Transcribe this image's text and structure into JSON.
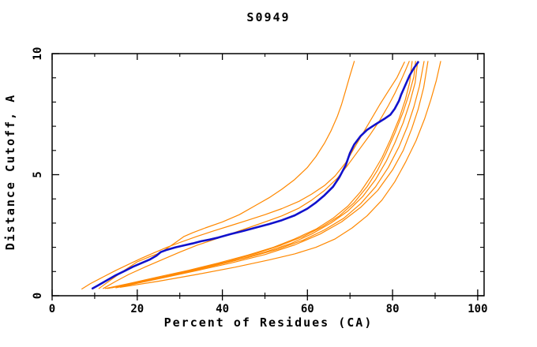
{
  "title": "S0949",
  "colors": {
    "background": "#FFFFFF",
    "axis": "#000000",
    "highlight_series": "#1111CC",
    "comparison_series": "#FF8800"
  },
  "chart_data": {
    "type": "line",
    "title": "S0949",
    "xlabel": "Percent of Residues (CA)",
    "ylabel": "Distance Cutoff, A",
    "xlim": [
      0,
      101.5
    ],
    "ylim": [
      0,
      10
    ],
    "x_major_ticks": [
      0,
      20,
      40,
      60,
      80,
      100
    ],
    "x_minor_ticks": [
      10,
      30,
      50,
      70,
      90
    ],
    "y_major_ticks": [
      0,
      5,
      10
    ],
    "y_minor_ticks": [
      1,
      2,
      3,
      4,
      6,
      7,
      8,
      9
    ],
    "grid": false,
    "legend": "none",
    "series": [
      {
        "name": "model-orange-1",
        "color": "#FF8800",
        "width": 1.2,
        "points": [
          [
            7,
            0.28
          ],
          [
            9,
            0.5
          ],
          [
            12,
            0.78
          ],
          [
            15,
            1.05
          ],
          [
            18,
            1.3
          ],
          [
            21,
            1.55
          ],
          [
            24,
            1.78
          ],
          [
            27,
            2.0
          ],
          [
            30,
            2.2
          ],
          [
            34,
            2.45
          ],
          [
            38,
            2.68
          ],
          [
            42,
            2.9
          ],
          [
            46,
            3.12
          ],
          [
            50,
            3.35
          ],
          [
            54,
            3.6
          ],
          [
            58,
            3.9
          ],
          [
            61,
            4.2
          ],
          [
            64,
            4.55
          ],
          [
            66.5,
            4.95
          ],
          [
            69,
            5.5
          ],
          [
            71,
            6.1
          ],
          [
            73,
            6.7
          ],
          [
            75,
            7.3
          ],
          [
            77,
            7.9
          ],
          [
            79,
            8.45
          ],
          [
            81,
            9.0
          ],
          [
            82.8,
            9.65
          ]
        ]
      },
      {
        "name": "model-orange-2",
        "color": "#FF8800",
        "width": 1.2,
        "points": [
          [
            11,
            0.3
          ],
          [
            14,
            0.68
          ],
          [
            17,
            1.05
          ],
          [
            20,
            1.4
          ],
          [
            23,
            1.62
          ],
          [
            25.5,
            1.78
          ],
          [
            26.5,
            1.9
          ],
          [
            29,
            2.2
          ],
          [
            31,
            2.45
          ],
          [
            33,
            2.6
          ],
          [
            36,
            2.8
          ],
          [
            40,
            3.05
          ],
          [
            44,
            3.35
          ],
          [
            48,
            3.75
          ],
          [
            51,
            4.05
          ],
          [
            54,
            4.4
          ],
          [
            57,
            4.8
          ],
          [
            60,
            5.3
          ],
          [
            62,
            5.75
          ],
          [
            64,
            6.3
          ],
          [
            65.5,
            6.8
          ],
          [
            67,
            7.4
          ],
          [
            68,
            7.9
          ],
          [
            69,
            8.5
          ],
          [
            70,
            9.1
          ],
          [
            71,
            9.68
          ]
        ]
      },
      {
        "name": "model-orange-3",
        "color": "#FF8800",
        "width": 1.2,
        "points": [
          [
            12,
            0.3
          ],
          [
            15,
            0.6
          ],
          [
            18,
            0.88
          ],
          [
            22,
            1.2
          ],
          [
            26,
            1.5
          ],
          [
            30,
            1.8
          ],
          [
            34,
            2.08
          ],
          [
            38,
            2.32
          ],
          [
            42,
            2.56
          ],
          [
            46,
            2.8
          ],
          [
            50,
            3.05
          ],
          [
            54,
            3.3
          ],
          [
            58,
            3.62
          ],
          [
            61,
            3.95
          ],
          [
            64,
            4.35
          ],
          [
            67,
            4.85
          ],
          [
            69.5,
            5.4
          ],
          [
            72,
            6.0
          ],
          [
            74.5,
            6.6
          ],
          [
            77,
            7.25
          ],
          [
            79,
            7.85
          ],
          [
            80.5,
            8.35
          ],
          [
            82,
            8.9
          ],
          [
            83,
            9.3
          ],
          [
            83.9,
            9.68
          ]
        ]
      },
      {
        "name": "model-orange-4",
        "color": "#FF8800",
        "width": 1.2,
        "points": [
          [
            12.5,
            0.3
          ],
          [
            18,
            0.5
          ],
          [
            25,
            0.78
          ],
          [
            32,
            1.05
          ],
          [
            39,
            1.35
          ],
          [
            46,
            1.68
          ],
          [
            52,
            2.0
          ],
          [
            57,
            2.35
          ],
          [
            62,
            2.75
          ],
          [
            66,
            3.2
          ],
          [
            69.5,
            3.7
          ],
          [
            72.5,
            4.3
          ],
          [
            75,
            4.95
          ],
          [
            77.5,
            5.7
          ],
          [
            79.5,
            6.45
          ],
          [
            81.5,
            7.3
          ],
          [
            83,
            8.1
          ],
          [
            84,
            8.8
          ],
          [
            84.6,
            9.68
          ]
        ]
      },
      {
        "name": "model-orange-5",
        "color": "#FF8800",
        "width": 1.2,
        "points": [
          [
            13,
            0.3
          ],
          [
            20,
            0.55
          ],
          [
            27,
            0.82
          ],
          [
            34,
            1.1
          ],
          [
            41,
            1.4
          ],
          [
            48,
            1.75
          ],
          [
            54,
            2.1
          ],
          [
            59,
            2.45
          ],
          [
            63.5,
            2.85
          ],
          [
            67.5,
            3.3
          ],
          [
            71,
            3.85
          ],
          [
            74,
            4.5
          ],
          [
            76.5,
            5.2
          ],
          [
            78.5,
            5.9
          ],
          [
            80.5,
            6.7
          ],
          [
            82.5,
            7.6
          ],
          [
            84,
            8.4
          ],
          [
            85,
            9.05
          ],
          [
            85.4,
            9.68
          ]
        ]
      },
      {
        "name": "model-orange-6",
        "color": "#FF8800",
        "width": 1.2,
        "points": [
          [
            13.5,
            0.32
          ],
          [
            21,
            0.58
          ],
          [
            29,
            0.88
          ],
          [
            37,
            1.2
          ],
          [
            44,
            1.5
          ],
          [
            50,
            1.8
          ],
          [
            56,
            2.15
          ],
          [
            61,
            2.55
          ],
          [
            65.5,
            3.0
          ],
          [
            69.5,
            3.5
          ],
          [
            73,
            4.1
          ],
          [
            76,
            4.8
          ],
          [
            78.5,
            5.55
          ],
          [
            80.5,
            6.3
          ],
          [
            82.5,
            7.15
          ],
          [
            84,
            7.95
          ],
          [
            85.3,
            8.8
          ],
          [
            85.9,
            9.68
          ]
        ]
      },
      {
        "name": "model-orange-7",
        "color": "#FF8800",
        "width": 1.2,
        "points": [
          [
            14,
            0.33
          ],
          [
            22,
            0.62
          ],
          [
            31,
            0.95
          ],
          [
            39,
            1.28
          ],
          [
            46,
            1.58
          ],
          [
            53,
            1.92
          ],
          [
            59,
            2.3
          ],
          [
            64,
            2.72
          ],
          [
            68.5,
            3.2
          ],
          [
            72.5,
            3.8
          ],
          [
            76,
            4.5
          ],
          [
            79,
            5.3
          ],
          [
            81.5,
            6.15
          ],
          [
            83.5,
            7.0
          ],
          [
            85,
            7.8
          ],
          [
            86.3,
            8.65
          ],
          [
            87.4,
            9.68
          ]
        ]
      },
      {
        "name": "model-orange-8",
        "color": "#FF8800",
        "width": 1.2,
        "points": [
          [
            15,
            0.33
          ],
          [
            24,
            0.66
          ],
          [
            33,
            1.0
          ],
          [
            42,
            1.35
          ],
          [
            50,
            1.7
          ],
          [
            57,
            2.1
          ],
          [
            63,
            2.55
          ],
          [
            68,
            3.05
          ],
          [
            72.5,
            3.65
          ],
          [
            76.5,
            4.35
          ],
          [
            80,
            5.2
          ],
          [
            82.5,
            6.0
          ],
          [
            84.5,
            6.9
          ],
          [
            86,
            7.7
          ],
          [
            87.3,
            8.6
          ],
          [
            88.3,
            9.68
          ]
        ]
      },
      {
        "name": "model-orange-9",
        "color": "#FF8800",
        "width": 1.2,
        "points": [
          [
            16,
            0.35
          ],
          [
            25,
            0.6
          ],
          [
            34,
            0.88
          ],
          [
            43,
            1.18
          ],
          [
            51,
            1.48
          ],
          [
            57,
            1.73
          ],
          [
            62,
            2.0
          ],
          [
            66.5,
            2.35
          ],
          [
            70.5,
            2.8
          ],
          [
            74,
            3.3
          ],
          [
            77.5,
            3.95
          ],
          [
            80.5,
            4.7
          ],
          [
            83,
            5.5
          ],
          [
            85.5,
            6.4
          ],
          [
            87.5,
            7.3
          ],
          [
            89,
            8.1
          ],
          [
            90.3,
            8.9
          ],
          [
            91.3,
            9.68
          ]
        ]
      },
      {
        "name": "model-blue-highlight",
        "color": "#1111CC",
        "width": 2.6,
        "points": [
          [
            9.5,
            0.3
          ],
          [
            11,
            0.45
          ],
          [
            13,
            0.65
          ],
          [
            15,
            0.85
          ],
          [
            17,
            1.02
          ],
          [
            19,
            1.2
          ],
          [
            21,
            1.35
          ],
          [
            23,
            1.5
          ],
          [
            24.5,
            1.65
          ],
          [
            25.5,
            1.8
          ],
          [
            27,
            1.9
          ],
          [
            29,
            2.0
          ],
          [
            31,
            2.08
          ],
          [
            33,
            2.16
          ],
          [
            35,
            2.25
          ],
          [
            37,
            2.32
          ],
          [
            39,
            2.4
          ],
          [
            42,
            2.55
          ],
          [
            45,
            2.68
          ],
          [
            48,
            2.82
          ],
          [
            51,
            2.96
          ],
          [
            54,
            3.12
          ],
          [
            57,
            3.32
          ],
          [
            60,
            3.6
          ],
          [
            62,
            3.85
          ],
          [
            64,
            4.15
          ],
          [
            66,
            4.5
          ],
          [
            67.5,
            4.9
          ],
          [
            69,
            5.4
          ],
          [
            70,
            5.9
          ],
          [
            71,
            6.25
          ],
          [
            72.5,
            6.6
          ],
          [
            74,
            6.85
          ],
          [
            76,
            7.08
          ],
          [
            78,
            7.3
          ],
          [
            79.5,
            7.48
          ],
          [
            80.5,
            7.72
          ],
          [
            81.5,
            8.05
          ],
          [
            82,
            8.3
          ],
          [
            83,
            8.7
          ],
          [
            84,
            9.1
          ],
          [
            85,
            9.4
          ],
          [
            86,
            9.65
          ]
        ]
      }
    ]
  }
}
